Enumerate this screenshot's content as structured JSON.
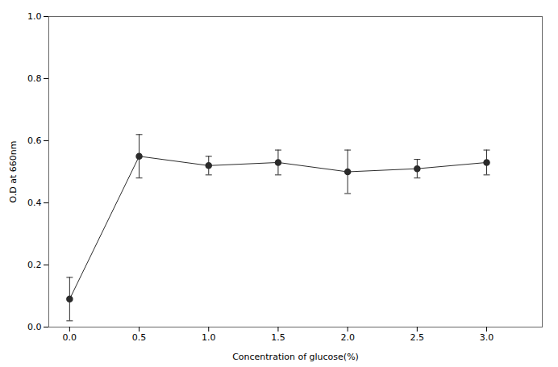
{
  "chart_data": {
    "type": "line",
    "x": [
      0.0,
      0.5,
      1.0,
      1.5,
      2.0,
      2.5,
      3.0
    ],
    "values": [
      0.09,
      0.55,
      0.52,
      0.53,
      0.5,
      0.51,
      0.53
    ],
    "yerr": [
      0.07,
      0.07,
      0.03,
      0.04,
      0.07,
      0.03,
      0.04
    ],
    "xlabel": "Concentration of glucose(%)",
    "ylabel": "O.D at 660nm",
    "xlim": [
      -0.15,
      3.4
    ],
    "ylim": [
      0.0,
      1.0
    ],
    "xticks": [
      {
        "value": 0.0,
        "label": "0.0"
      },
      {
        "value": 0.5,
        "label": "0.5"
      },
      {
        "value": 1.0,
        "label": "1.0"
      },
      {
        "value": 1.5,
        "label": "1.5"
      },
      {
        "value": 2.0,
        "label": "2.0"
      },
      {
        "value": 2.5,
        "label": "2.5"
      },
      {
        "value": 3.0,
        "label": "3.0"
      }
    ],
    "yticks": [
      {
        "value": 0.0,
        "label": "0.0"
      },
      {
        "value": 0.2,
        "label": "0.2"
      },
      {
        "value": 0.4,
        "label": "0.4"
      },
      {
        "value": 0.6,
        "label": "0.6"
      },
      {
        "value": 0.8,
        "label": "0.8"
      },
      {
        "value": 1.0,
        "label": "1.0"
      }
    ],
    "color": "#2b2b2b",
    "marker": "circle",
    "grid": false
  }
}
